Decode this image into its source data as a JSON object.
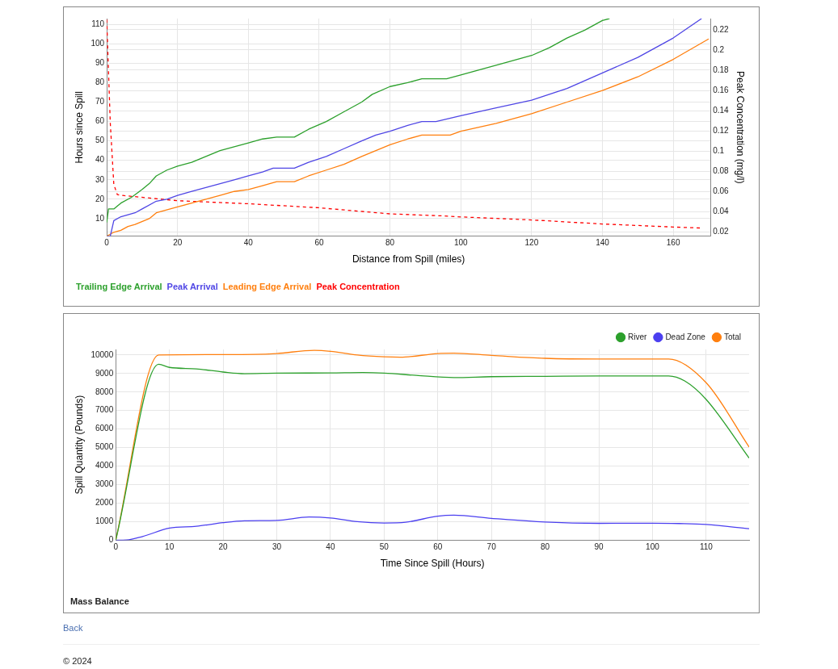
{
  "chart_data": [
    {
      "type": "line",
      "xlabel": "Distance from Spill (miles)",
      "ylabel": "Hours since Spill",
      "y2label": "Peak Concentration (mg/l)",
      "xlim": [
        0,
        170.5
      ],
      "xticks": [
        0,
        20,
        40,
        60,
        80,
        100,
        120,
        140,
        160
      ],
      "ylim": [
        1,
        113
      ],
      "yticks": [
        10,
        20,
        30,
        40,
        50,
        60,
        70,
        80,
        90,
        100,
        110
      ],
      "y2lim": [
        0.016,
        0.231
      ],
      "y2ticks": [
        0.02,
        0.04,
        0.06,
        0.08,
        {
          "value": 0.1,
          "label": "0.1"
        },
        0.12,
        0.14,
        0.16,
        0.18,
        {
          "value": 0.2,
          "label": "0.2"
        },
        0.22
      ],
      "grid": true,
      "legend": "bottom left",
      "marker": "none",
      "series": [
        {
          "name": "Trailing Edge Arrival",
          "color": "#2ca02c",
          "x": [
            0,
            0.5,
            2,
            4,
            7,
            10,
            12,
            14,
            17,
            20,
            24,
            28,
            32,
            36,
            40,
            44,
            48,
            53,
            57,
            62,
            67,
            72,
            75,
            80,
            85,
            89,
            96,
            100,
            106,
            112,
            120,
            125,
            130,
            135,
            140,
            142
          ],
          "values": [
            8,
            15,
            15,
            18,
            21,
            25,
            28,
            32,
            35,
            37,
            39,
            42,
            45,
            47,
            49,
            51,
            52,
            52,
            56,
            60,
            65,
            70,
            74,
            78,
            80,
            82,
            82,
            84,
            87,
            90,
            94,
            98,
            103,
            107,
            112,
            113
          ]
        },
        {
          "name": "Peak Arrival",
          "color": "#4f46e5",
          "x": [
            0,
            1,
            2,
            4,
            6,
            8,
            10,
            14,
            17,
            20,
            24,
            28,
            32,
            36,
            40,
            44,
            47,
            53,
            57,
            62,
            67,
            72,
            76,
            80,
            85,
            89,
            93,
            100,
            110,
            120,
            130,
            140,
            150,
            160,
            168
          ],
          "values": [
            1,
            1,
            9,
            11,
            12,
            13,
            15,
            19,
            20,
            22,
            24,
            26,
            28,
            30,
            32,
            34,
            36,
            36,
            39,
            42,
            46,
            50,
            53,
            55,
            58,
            60,
            60,
            63,
            67,
            71,
            77,
            85,
            93,
            103,
            113
          ]
        },
        {
          "name": "Leading Edge Arrival",
          "color": "#ff7f0e",
          "x": [
            0,
            2,
            4,
            6,
            8,
            12,
            14,
            20,
            24,
            28,
            32,
            36,
            40,
            44,
            48,
            53,
            57,
            62,
            67,
            72,
            76,
            80,
            85,
            89,
            97,
            100,
            110,
            120,
            130,
            140,
            150,
            160,
            170
          ],
          "values": [
            1,
            3,
            4,
            6,
            7,
            10,
            13,
            16,
            18,
            20,
            22,
            24,
            25,
            27,
            29,
            29,
            32,
            35,
            38,
            42,
            45,
            48,
            51,
            53,
            53,
            55,
            59,
            64,
            70,
            76,
            83,
            92,
            102.5
          ]
        },
        {
          "name": "Peak Concentration",
          "color": "#ff0000",
          "axis": "y2",
          "line_style": "dashed",
          "x": [
            0,
            0.3,
            1,
            2,
            3,
            5,
            20,
            40,
            60,
            80,
            95,
            100,
            120,
            140,
            160,
            168
          ],
          "values": [
            0.23,
            0.199,
            0.128,
            0.067,
            0.057,
            0.056,
            0.051,
            0.048,
            0.044,
            0.038,
            0.036,
            0.035,
            0.032,
            0.028,
            0.025,
            0.024
          ]
        }
      ]
    },
    {
      "type": "line",
      "title": "Mass Balance",
      "xlabel": "Time Since Spill (Hours)",
      "ylabel": "Spill Quantity (Pounds)",
      "xlim": [
        0,
        118
      ],
      "xticks": [
        0,
        10,
        20,
        30,
        40,
        50,
        60,
        70,
        80,
        90,
        100,
        110
      ],
      "ylim": [
        0,
        10300
      ],
      "yticks": [
        0,
        1000,
        2000,
        3000,
        4000,
        5000,
        6000,
        7000,
        8000,
        9000,
        10000
      ],
      "grid": true,
      "legend": "top right",
      "marker": "none",
      "annotations": [
        "Back",
        "© 2024"
      ],
      "series": [
        {
          "name": "River",
          "color": "#2ca02c",
          "x": [
            0,
            8,
            10,
            15,
            20,
            24,
            30,
            40,
            46,
            50,
            56,
            63,
            70,
            80,
            90,
            100,
            103,
            106,
            110,
            118
          ],
          "values": [
            0,
            9500,
            9330,
            9250,
            9080,
            8990,
            9020,
            9030,
            9050,
            9020,
            8900,
            8780,
            8830,
            8850,
            8870,
            8870,
            8870,
            8600,
            7600,
            4440
          ]
        },
        {
          "name": "Dead Zone",
          "color": "#4b3ff0",
          "x": [
            0,
            2,
            5,
            10,
            15,
            20,
            24,
            30,
            36,
            40,
            45,
            50,
            54,
            60,
            63,
            70,
            80,
            90,
            100,
            105,
            110,
            118
          ],
          "values": [
            0,
            10,
            200,
            650,
            750,
            950,
            1050,
            1070,
            1250,
            1200,
            1000,
            930,
            970,
            1300,
            1350,
            1180,
            980,
            910,
            920,
            900,
            850,
            620
          ]
        },
        {
          "name": "Total",
          "color": "#ff7f0e",
          "x": [
            0,
            8,
            20,
            26,
            30,
            37,
            40,
            45,
            50,
            53,
            60,
            63,
            70,
            80,
            90,
            100,
            103,
            110,
            118
          ],
          "values": [
            0,
            10000,
            10020,
            10030,
            10080,
            10250,
            10200,
            10000,
            9900,
            9880,
            10080,
            10100,
            9980,
            9820,
            9780,
            9780,
            9780,
            8500,
            5030
          ]
        }
      ]
    }
  ]
}
